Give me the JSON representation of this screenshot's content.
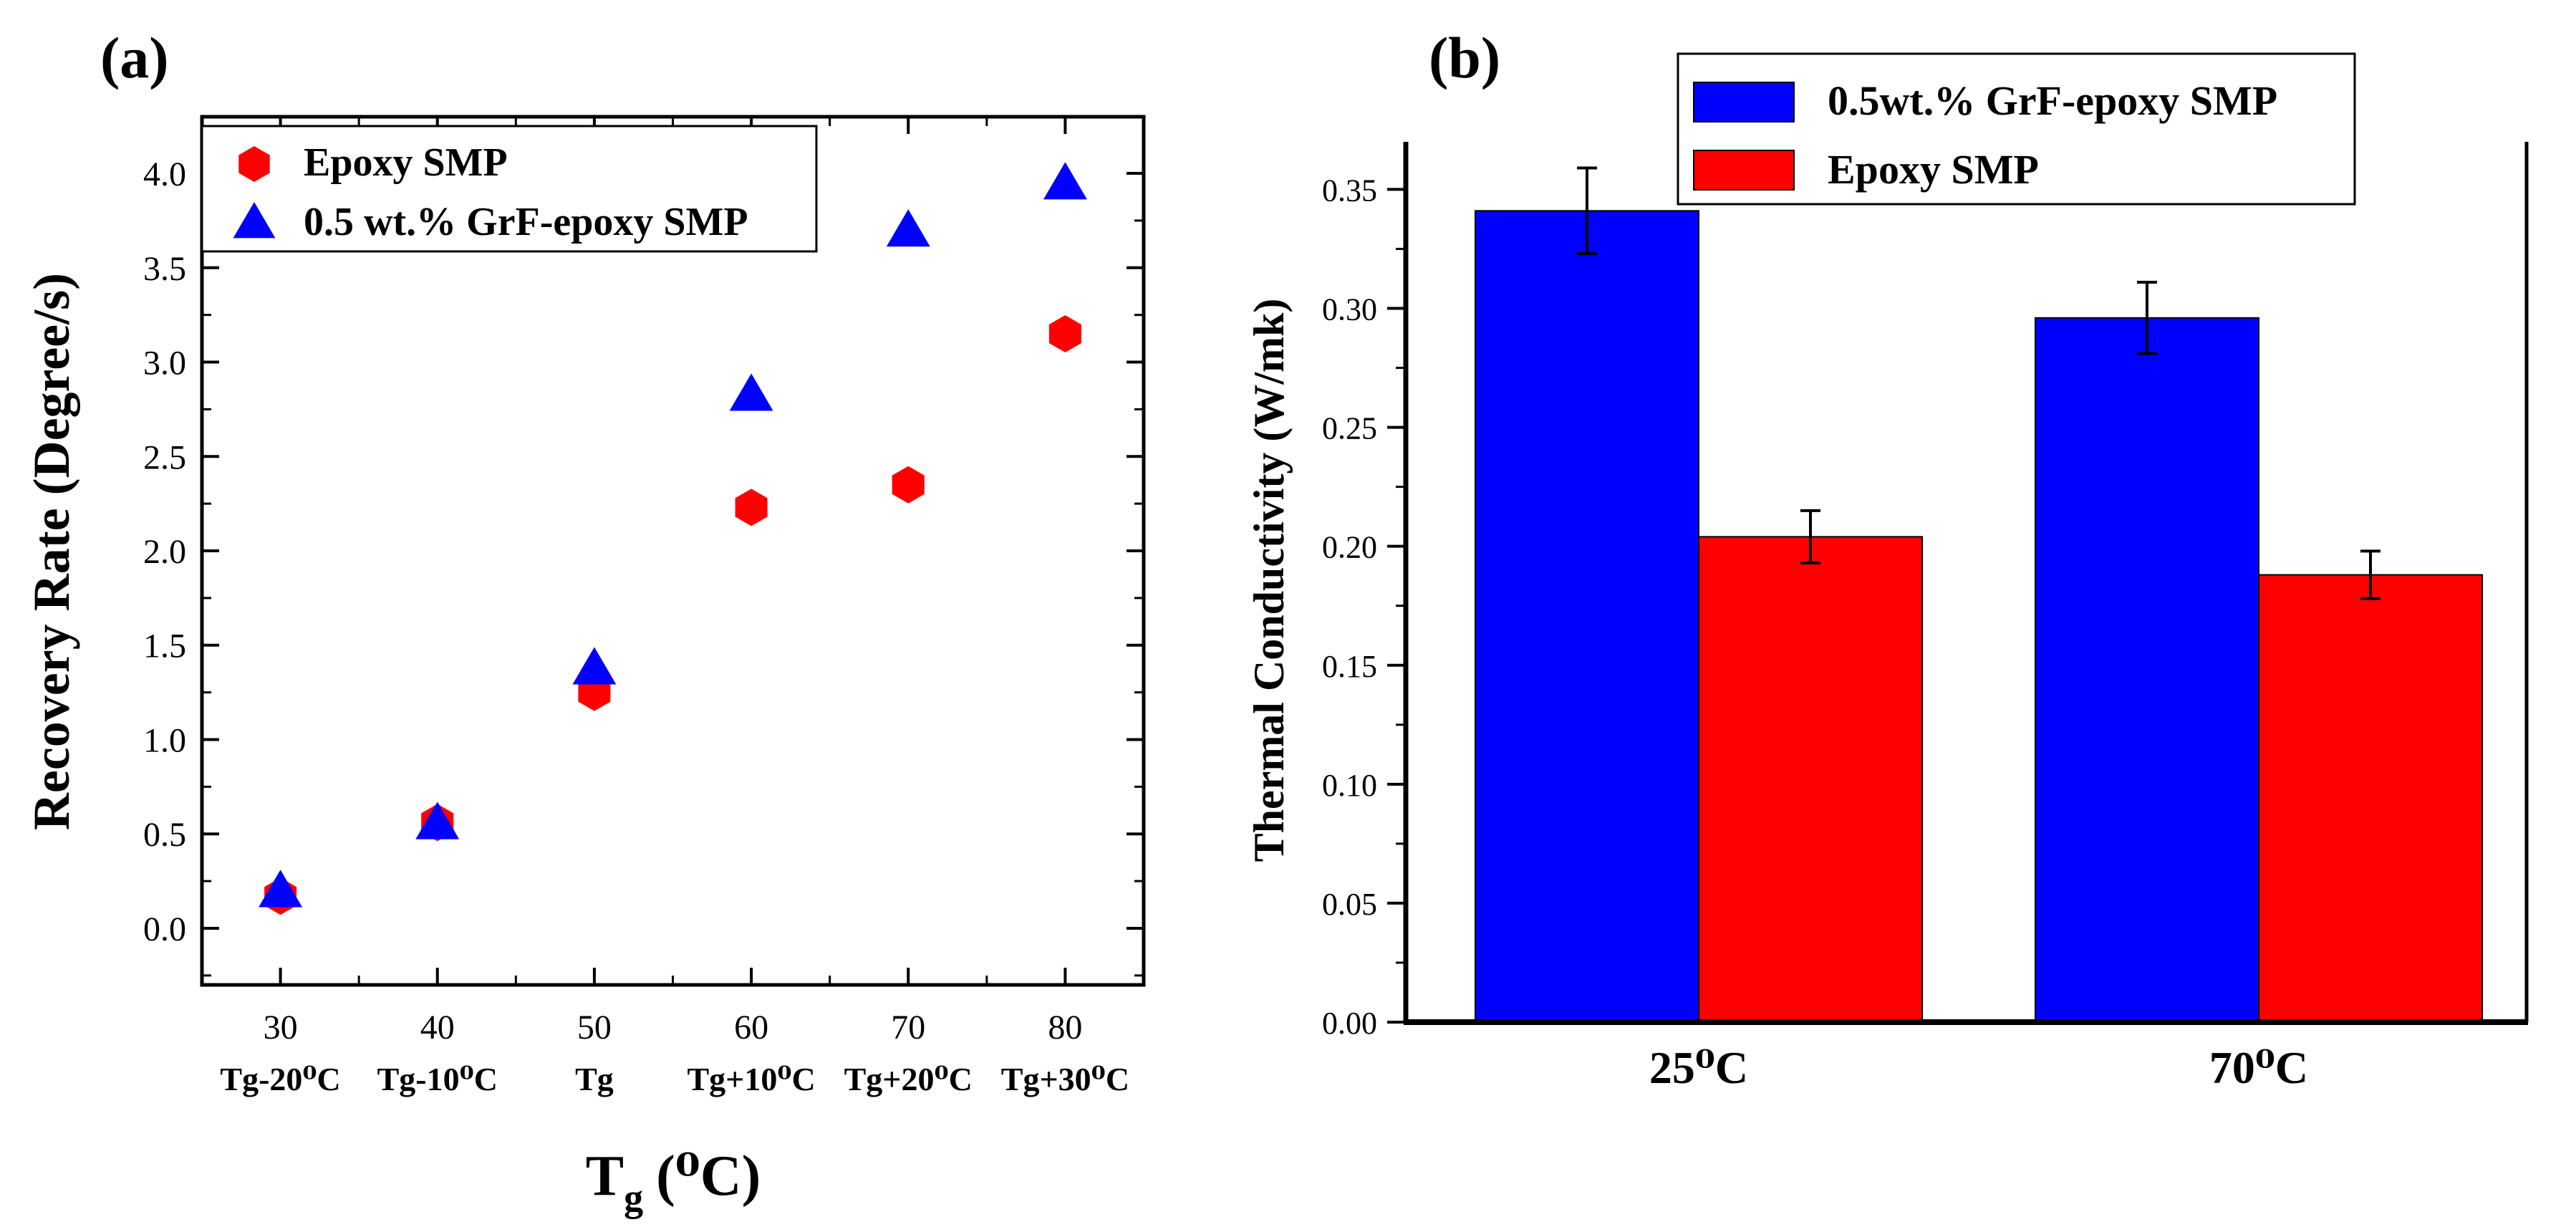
{
  "chart_data": [
    {
      "type": "scatter",
      "panel_label": "(a)",
      "title": "",
      "xlabel": "T",
      "xlabel_sub": "g",
      "xlabel_unit": "(⁰C)",
      "ylabel": "Recovery Rate (Degree/s)",
      "x": [
        30,
        40,
        50,
        60,
        70,
        80
      ],
      "x_tick_labels": [
        "30",
        "40",
        "50",
        "60",
        "70",
        "80"
      ],
      "x_tick_sublabels": [
        "Tg-20⁰C",
        "Tg-10⁰C",
        "Tg",
        "Tg+10⁰C",
        "Tg+20⁰C",
        "Tg+30⁰C"
      ],
      "xlim": [
        25,
        85
      ],
      "ylim": [
        -0.3,
        4.3
      ],
      "y_ticks": [
        "0.0",
        "0.5",
        "1.0",
        "1.5",
        "2.0",
        "2.5",
        "3.0",
        "3.5",
        "4.0"
      ],
      "grid": false,
      "legend_position": "top-left",
      "series": [
        {
          "name": "Epoxy SMP",
          "marker": "hexagon",
          "color": "#ff0000",
          "values": [
            0.17,
            0.56,
            1.25,
            2.23,
            2.35,
            3.15
          ]
        },
        {
          "name": "0.5 wt.% GrF-epoxy SMP",
          "marker": "triangle",
          "color": "#0000ff",
          "values": [
            0.2,
            0.56,
            1.38,
            2.83,
            3.7,
            3.95
          ]
        }
      ]
    },
    {
      "type": "bar",
      "panel_label": "(b)",
      "title": "",
      "xlabel": "",
      "ylabel": "Thermal Conductivity (W/mk)",
      "categories": [
        "25⁰C",
        "70⁰C"
      ],
      "ylim": [
        0,
        0.37
      ],
      "y_ticks": [
        "0.00",
        "0.05",
        "0.10",
        "0.15",
        "0.20",
        "0.25",
        "0.30",
        "0.35"
      ],
      "grid": false,
      "legend_position": "top",
      "series": [
        {
          "name": "0.5wt.% GrF-epoxy SMP",
          "color": "#0000ff",
          "values": [
            0.341,
            0.296
          ],
          "errors": [
            0.018,
            0.015
          ]
        },
        {
          "name": "Epoxy SMP",
          "color": "#ff0000",
          "values": [
            0.204,
            0.188
          ],
          "errors": [
            0.011,
            0.01
          ]
        }
      ]
    }
  ]
}
